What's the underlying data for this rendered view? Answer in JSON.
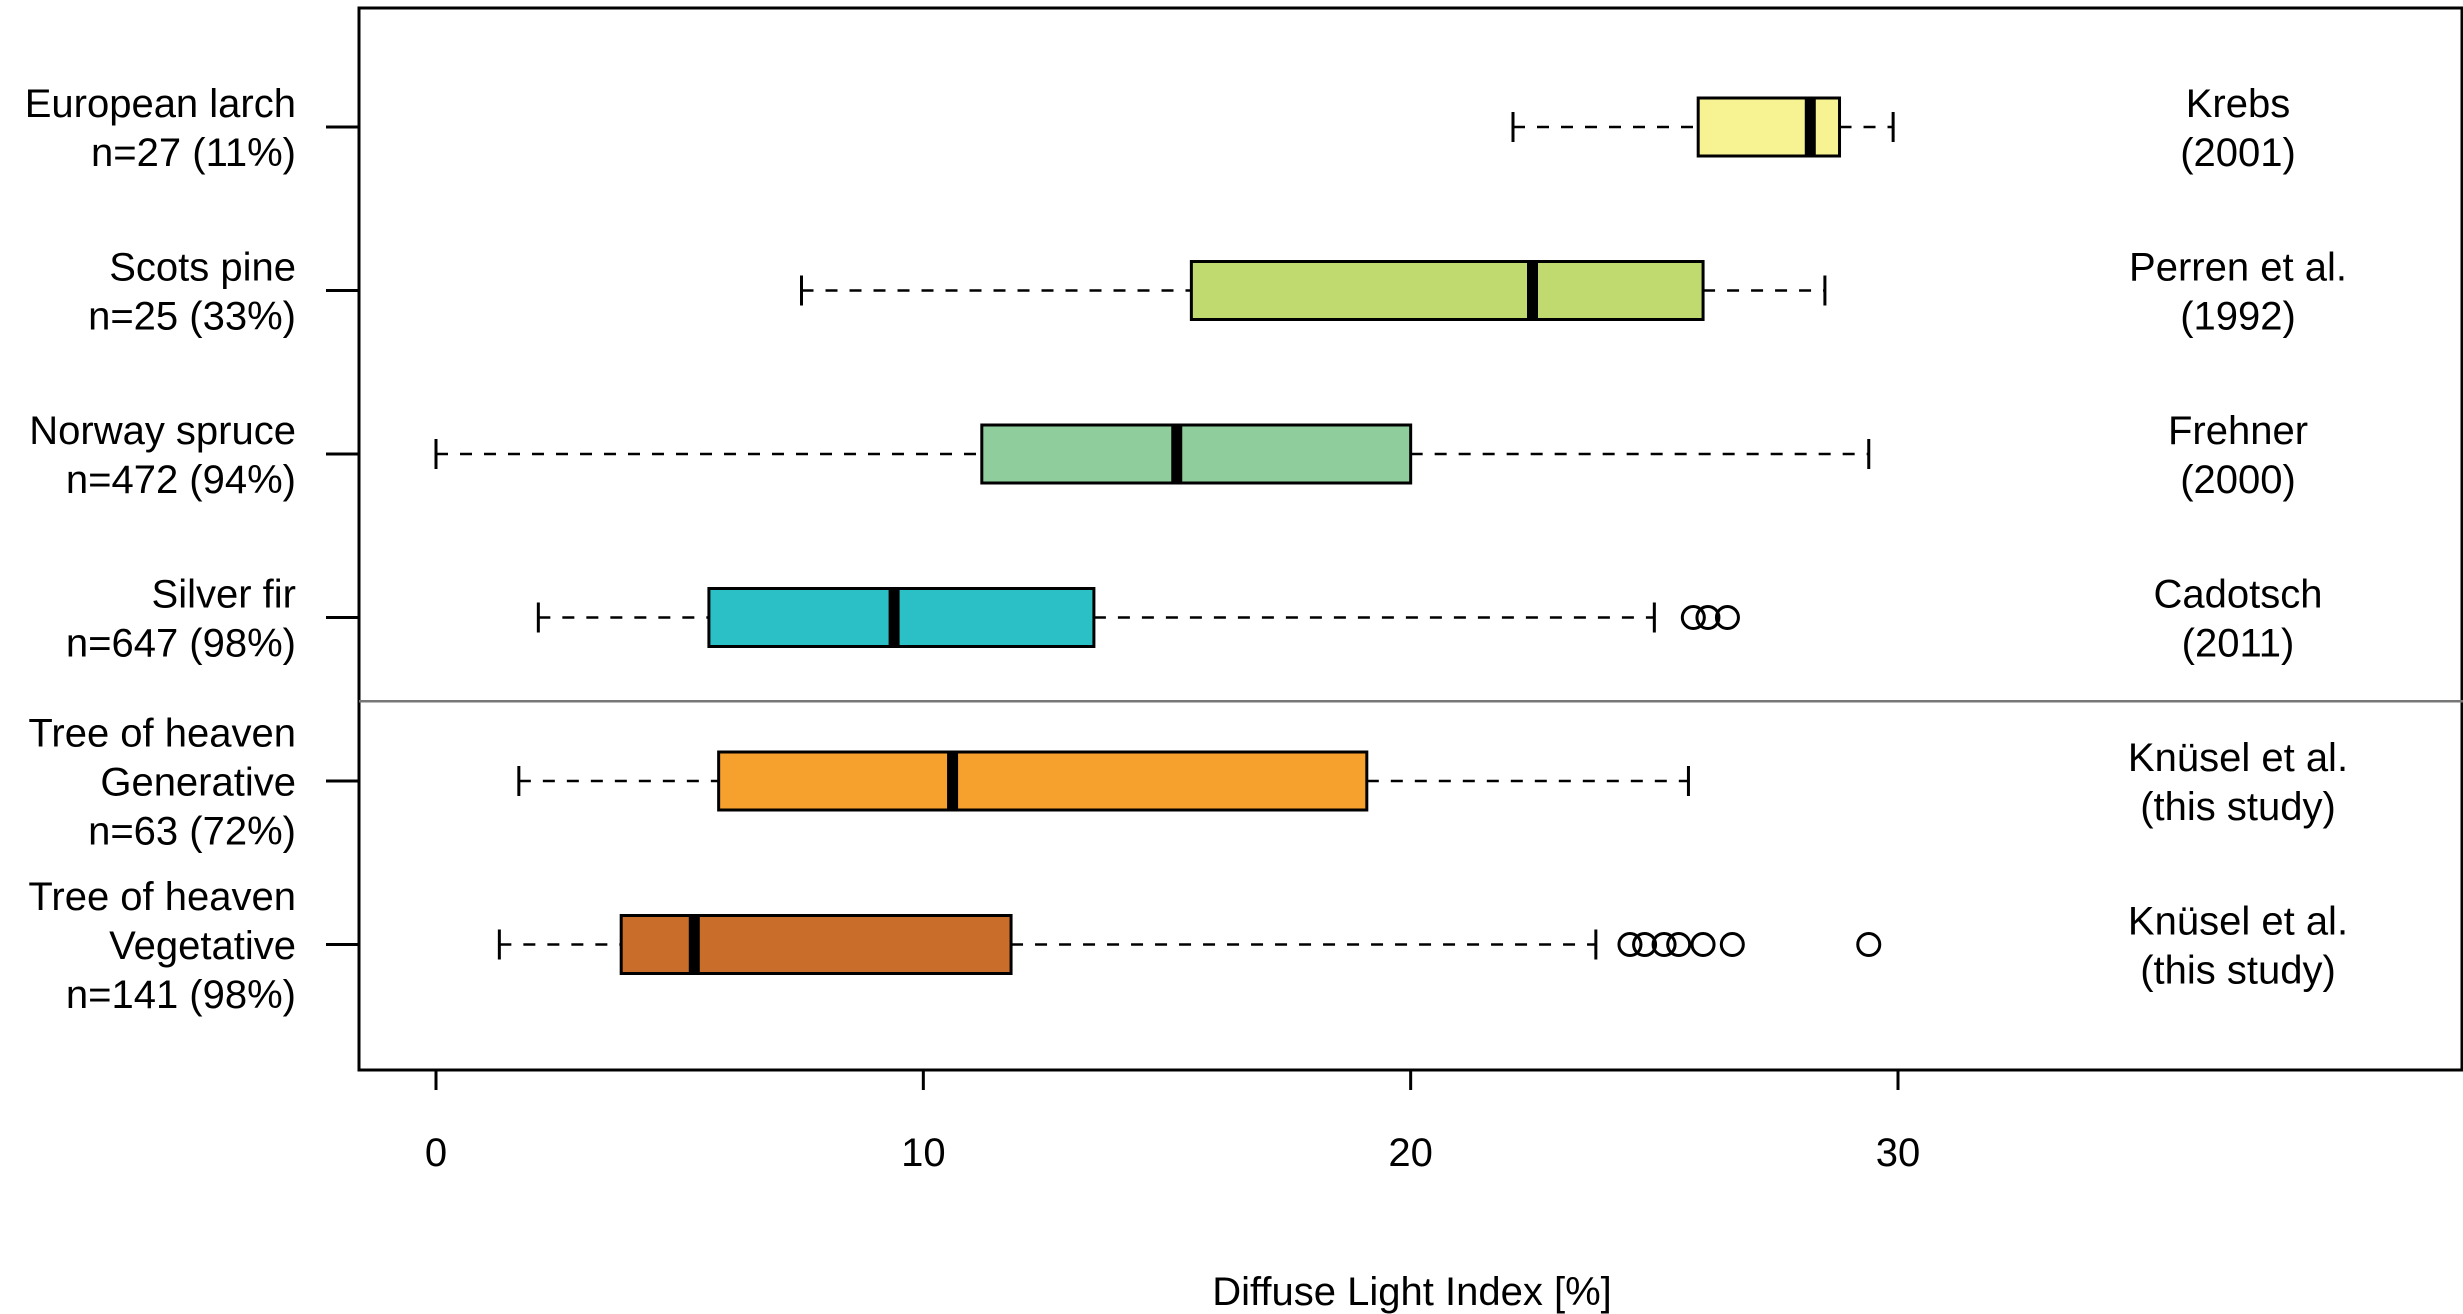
{
  "chart_data": {
    "type": "boxplot",
    "orientation": "horizontal",
    "title": "",
    "xlabel": "Diffuse Light Index [%]",
    "ylabel": "",
    "xlim": [
      -1.5,
      41.5
    ],
    "xticks": [
      0,
      10,
      20,
      30
    ],
    "grid": false,
    "legend": "none",
    "separator_between_group": 4,
    "groups": [
      {
        "label_lines": [
          "European larch",
          "n=27 (11%)"
        ],
        "source_lines": [
          "Krebs",
          "(2001)"
        ],
        "color": "#F7F393",
        "whisker_low": 22.1,
        "q1": 25.9,
        "median": 28.2,
        "q3": 28.8,
        "whisker_high": 29.9,
        "outliers": []
      },
      {
        "label_lines": [
          "Scots pine",
          "n=25 (33%)"
        ],
        "source_lines": [
          "Perren et al.",
          "(1992)"
        ],
        "color": "#C0DA6F",
        "whisker_low": 7.5,
        "q1": 15.5,
        "median": 22.5,
        "q3": 26.0,
        "whisker_high": 28.5,
        "outliers": []
      },
      {
        "label_lines": [
          "Norway spruce",
          "n=472 (94%)"
        ],
        "source_lines": [
          "Frehner",
          "(2000)"
        ],
        "color": "#8FCE9C",
        "whisker_low": 0.0,
        "q1": 11.2,
        "median": 15.2,
        "q3": 20.0,
        "whisker_high": 29.4,
        "outliers": []
      },
      {
        "label_lines": [
          "Silver fir",
          "n=647 (98%)"
        ],
        "source_lines": [
          "Cadotsch",
          "(2011)"
        ],
        "color": "#2BBFC6",
        "whisker_low": 2.1,
        "q1": 5.6,
        "median": 9.4,
        "q3": 13.5,
        "whisker_high": 25.0,
        "outliers": [
          25.8,
          26.1,
          26.5
        ]
      },
      {
        "label_lines": [
          "Tree of heaven",
          "Generative",
          "n=63 (72%)"
        ],
        "source_lines": [
          "Knüsel et al.",
          "(this study)"
        ],
        "color": "#F6A12E",
        "whisker_low": 1.7,
        "q1": 5.8,
        "median": 10.6,
        "q3": 19.1,
        "whisker_high": 25.7,
        "outliers": []
      },
      {
        "label_lines": [
          "Tree of heaven",
          "Vegetative",
          "n=141 (98%)"
        ],
        "source_lines": [
          "Knüsel et al.",
          "(this study)"
        ],
        "color": "#C96D2A",
        "whisker_low": 1.3,
        "q1": 3.8,
        "median": 5.3,
        "q3": 11.8,
        "whisker_high": 23.8,
        "outliers": [
          24.5,
          24.8,
          25.2,
          25.5,
          26.0,
          26.6,
          29.4
        ]
      }
    ]
  }
}
